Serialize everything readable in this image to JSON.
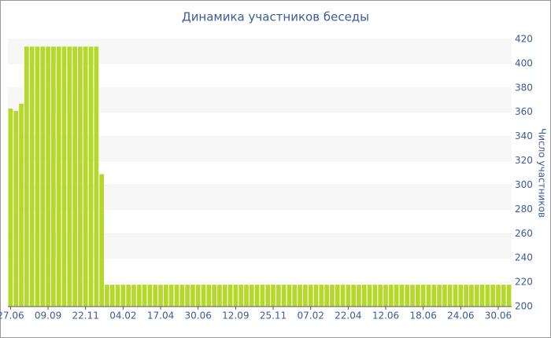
{
  "chart_data": {
    "type": "bar",
    "title": "Динамика участников беседы",
    "y_label": "Число участников",
    "categories": [
      "27.06",
      null,
      null,
      null,
      null,
      null,
      null,
      "09.09",
      null,
      null,
      null,
      null,
      null,
      null,
      "22.11",
      null,
      null,
      null,
      null,
      null,
      null,
      "04.02",
      null,
      null,
      null,
      null,
      null,
      null,
      "17.04",
      null,
      null,
      null,
      null,
      null,
      null,
      "30.06",
      null,
      null,
      null,
      null,
      null,
      null,
      "12.09",
      null,
      null,
      null,
      null,
      null,
      null,
      "25.11",
      null,
      null,
      null,
      null,
      null,
      null,
      "07.02",
      null,
      null,
      null,
      null,
      null,
      null,
      "22.04",
      null,
      null,
      null,
      null,
      null,
      null,
      "12.06",
      null,
      null,
      null,
      null,
      null,
      null,
      "18.06",
      null,
      null,
      null,
      null,
      null,
      null,
      "24.06",
      null,
      null,
      null,
      null,
      null,
      null,
      "30.06",
      null,
      null
    ],
    "values": [
      363,
      361,
      367,
      414,
      414,
      414,
      414,
      414,
      414,
      414,
      414,
      414,
      414,
      414,
      414,
      414,
      414,
      309,
      218,
      218,
      218,
      218,
      218,
      218,
      218,
      218,
      218,
      218,
      218,
      218,
      218,
      218,
      218,
      218,
      218,
      218,
      218,
      218,
      218,
      218,
      218,
      218,
      218,
      218,
      218,
      218,
      218,
      218,
      218,
      218,
      218,
      218,
      218,
      218,
      218,
      218,
      218,
      218,
      218,
      218,
      218,
      218,
      218,
      218,
      218,
      218,
      218,
      218,
      218,
      218,
      218,
      218,
      218,
      218,
      218,
      218,
      218,
      218,
      218,
      218,
      218,
      218,
      218,
      218,
      218,
      218,
      218,
      218,
      218,
      218,
      218,
      218,
      218,
      218
    ],
    "color": "#b5d92b",
    "ylim": [
      200,
      420
    ],
    "yticks": [
      200,
      220,
      240,
      260,
      280,
      300,
      320,
      340,
      360,
      380,
      400,
      420
    ],
    "grid": true
  }
}
